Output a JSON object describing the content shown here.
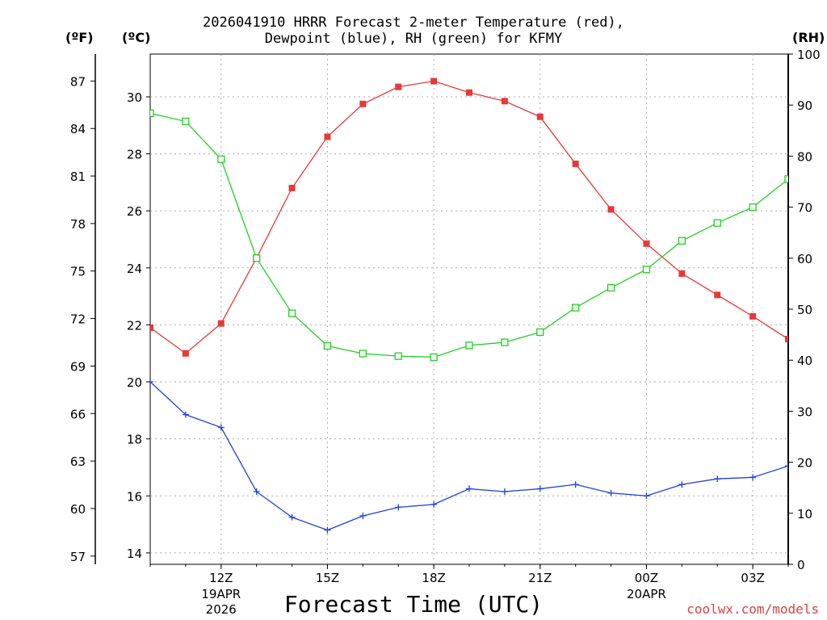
{
  "chart_data": {
    "type": "line",
    "title_line1": "2026041910 HRRR Forecast 2-meter Temperature (red),",
    "title_line2": "Dewpoint (blue), RH (green) for KFMY",
    "unit_f": "(ºF)",
    "unit_c": "(ºC)",
    "unit_rh": "(RH)",
    "xlabel": "Forecast Time (UTC)",
    "credit": "coolwx.com/models",
    "x": [
      10,
      11,
      12,
      13,
      14,
      15,
      16,
      17,
      18,
      19,
      20,
      21,
      22,
      23,
      24,
      25,
      26,
      27,
      28
    ],
    "xlim": [
      10,
      28
    ],
    "c_ylim": [
      13.6,
      31.5
    ],
    "f_ylim": [
      56.48,
      88.7
    ],
    "rh_ylim": [
      0,
      100
    ],
    "x_ticks": [
      {
        "x": 12,
        "label": "12Z",
        "sub1": "19APR",
        "sub2": "2026"
      },
      {
        "x": 15,
        "label": "15Z",
        "sub1": "",
        "sub2": ""
      },
      {
        "x": 18,
        "label": "18Z",
        "sub1": "",
        "sub2": ""
      },
      {
        "x": 21,
        "label": "21Z",
        "sub1": "",
        "sub2": ""
      },
      {
        "x": 24,
        "label": "00Z",
        "sub1": "20APR",
        "sub2": ""
      },
      {
        "x": 27,
        "label": "03Z",
        "sub1": "",
        "sub2": ""
      }
    ],
    "c_ticks": [
      {
        "value": 14,
        "label": "14"
      },
      {
        "value": 16,
        "label": "16"
      },
      {
        "value": 18,
        "label": "18"
      },
      {
        "value": 20,
        "label": "20"
      },
      {
        "value": 22,
        "label": "22"
      },
      {
        "value": 24,
        "label": "24"
      },
      {
        "value": 26,
        "label": "26"
      },
      {
        "value": 28,
        "label": "28"
      },
      {
        "value": 30,
        "label": "30"
      }
    ],
    "f_ticks": [
      {
        "value": 57,
        "label": "57"
      },
      {
        "value": 60,
        "label": "60"
      },
      {
        "value": 63,
        "label": "63"
      },
      {
        "value": 66,
        "label": "66"
      },
      {
        "value": 69,
        "label": "69"
      },
      {
        "value": 72,
        "label": "72"
      },
      {
        "value": 75,
        "label": "75"
      },
      {
        "value": 78,
        "label": "78"
      },
      {
        "value": 81,
        "label": "81"
      },
      {
        "value": 84,
        "label": "84"
      },
      {
        "value": 87,
        "label": "87"
      }
    ],
    "rh_ticks": [
      {
        "value": 0,
        "label": "0"
      },
      {
        "value": 10,
        "label": "10"
      },
      {
        "value": 20,
        "label": "20"
      },
      {
        "value": 30,
        "label": "30"
      },
      {
        "value": 40,
        "label": "40"
      },
      {
        "value": 50,
        "label": "50"
      },
      {
        "value": 60,
        "label": "60"
      },
      {
        "value": 70,
        "label": "70"
      },
      {
        "value": 80,
        "label": "80"
      },
      {
        "value": 90,
        "label": "90"
      },
      {
        "value": 100,
        "label": "100"
      }
    ],
    "grid": true,
    "series": [
      {
        "name": "Temperature",
        "unit": "C",
        "axis": "c",
        "color": "#e83838",
        "marker": "filled-square",
        "values": [
          21.9,
          21.0,
          22.05,
          24.35,
          26.8,
          28.6,
          29.75,
          30.35,
          30.55,
          30.15,
          29.85,
          29.3,
          27.65,
          26.05,
          24.85,
          23.8,
          23.05,
          22.3,
          21.5
        ]
      },
      {
        "name": "Dewpoint",
        "unit": "C",
        "axis": "c",
        "color": "#2040e0",
        "marker": "plus",
        "values": [
          20.0,
          18.85,
          18.4,
          16.15,
          15.25,
          14.8,
          15.3,
          15.6,
          15.7,
          16.25,
          16.15,
          16.25,
          16.4,
          16.1,
          16.0,
          16.4,
          16.6,
          16.65,
          17.05
        ]
      },
      {
        "name": "RH",
        "unit": "%",
        "axis": "rh",
        "color": "#20d020",
        "marker": "open-square",
        "values": [
          88.4,
          86.8,
          79.4,
          60.0,
          49.2,
          42.8,
          41.3,
          40.8,
          40.6,
          42.9,
          43.5,
          45.5,
          50.3,
          54.2,
          57.8,
          63.4,
          66.9,
          70.0,
          75.5
        ]
      }
    ]
  }
}
